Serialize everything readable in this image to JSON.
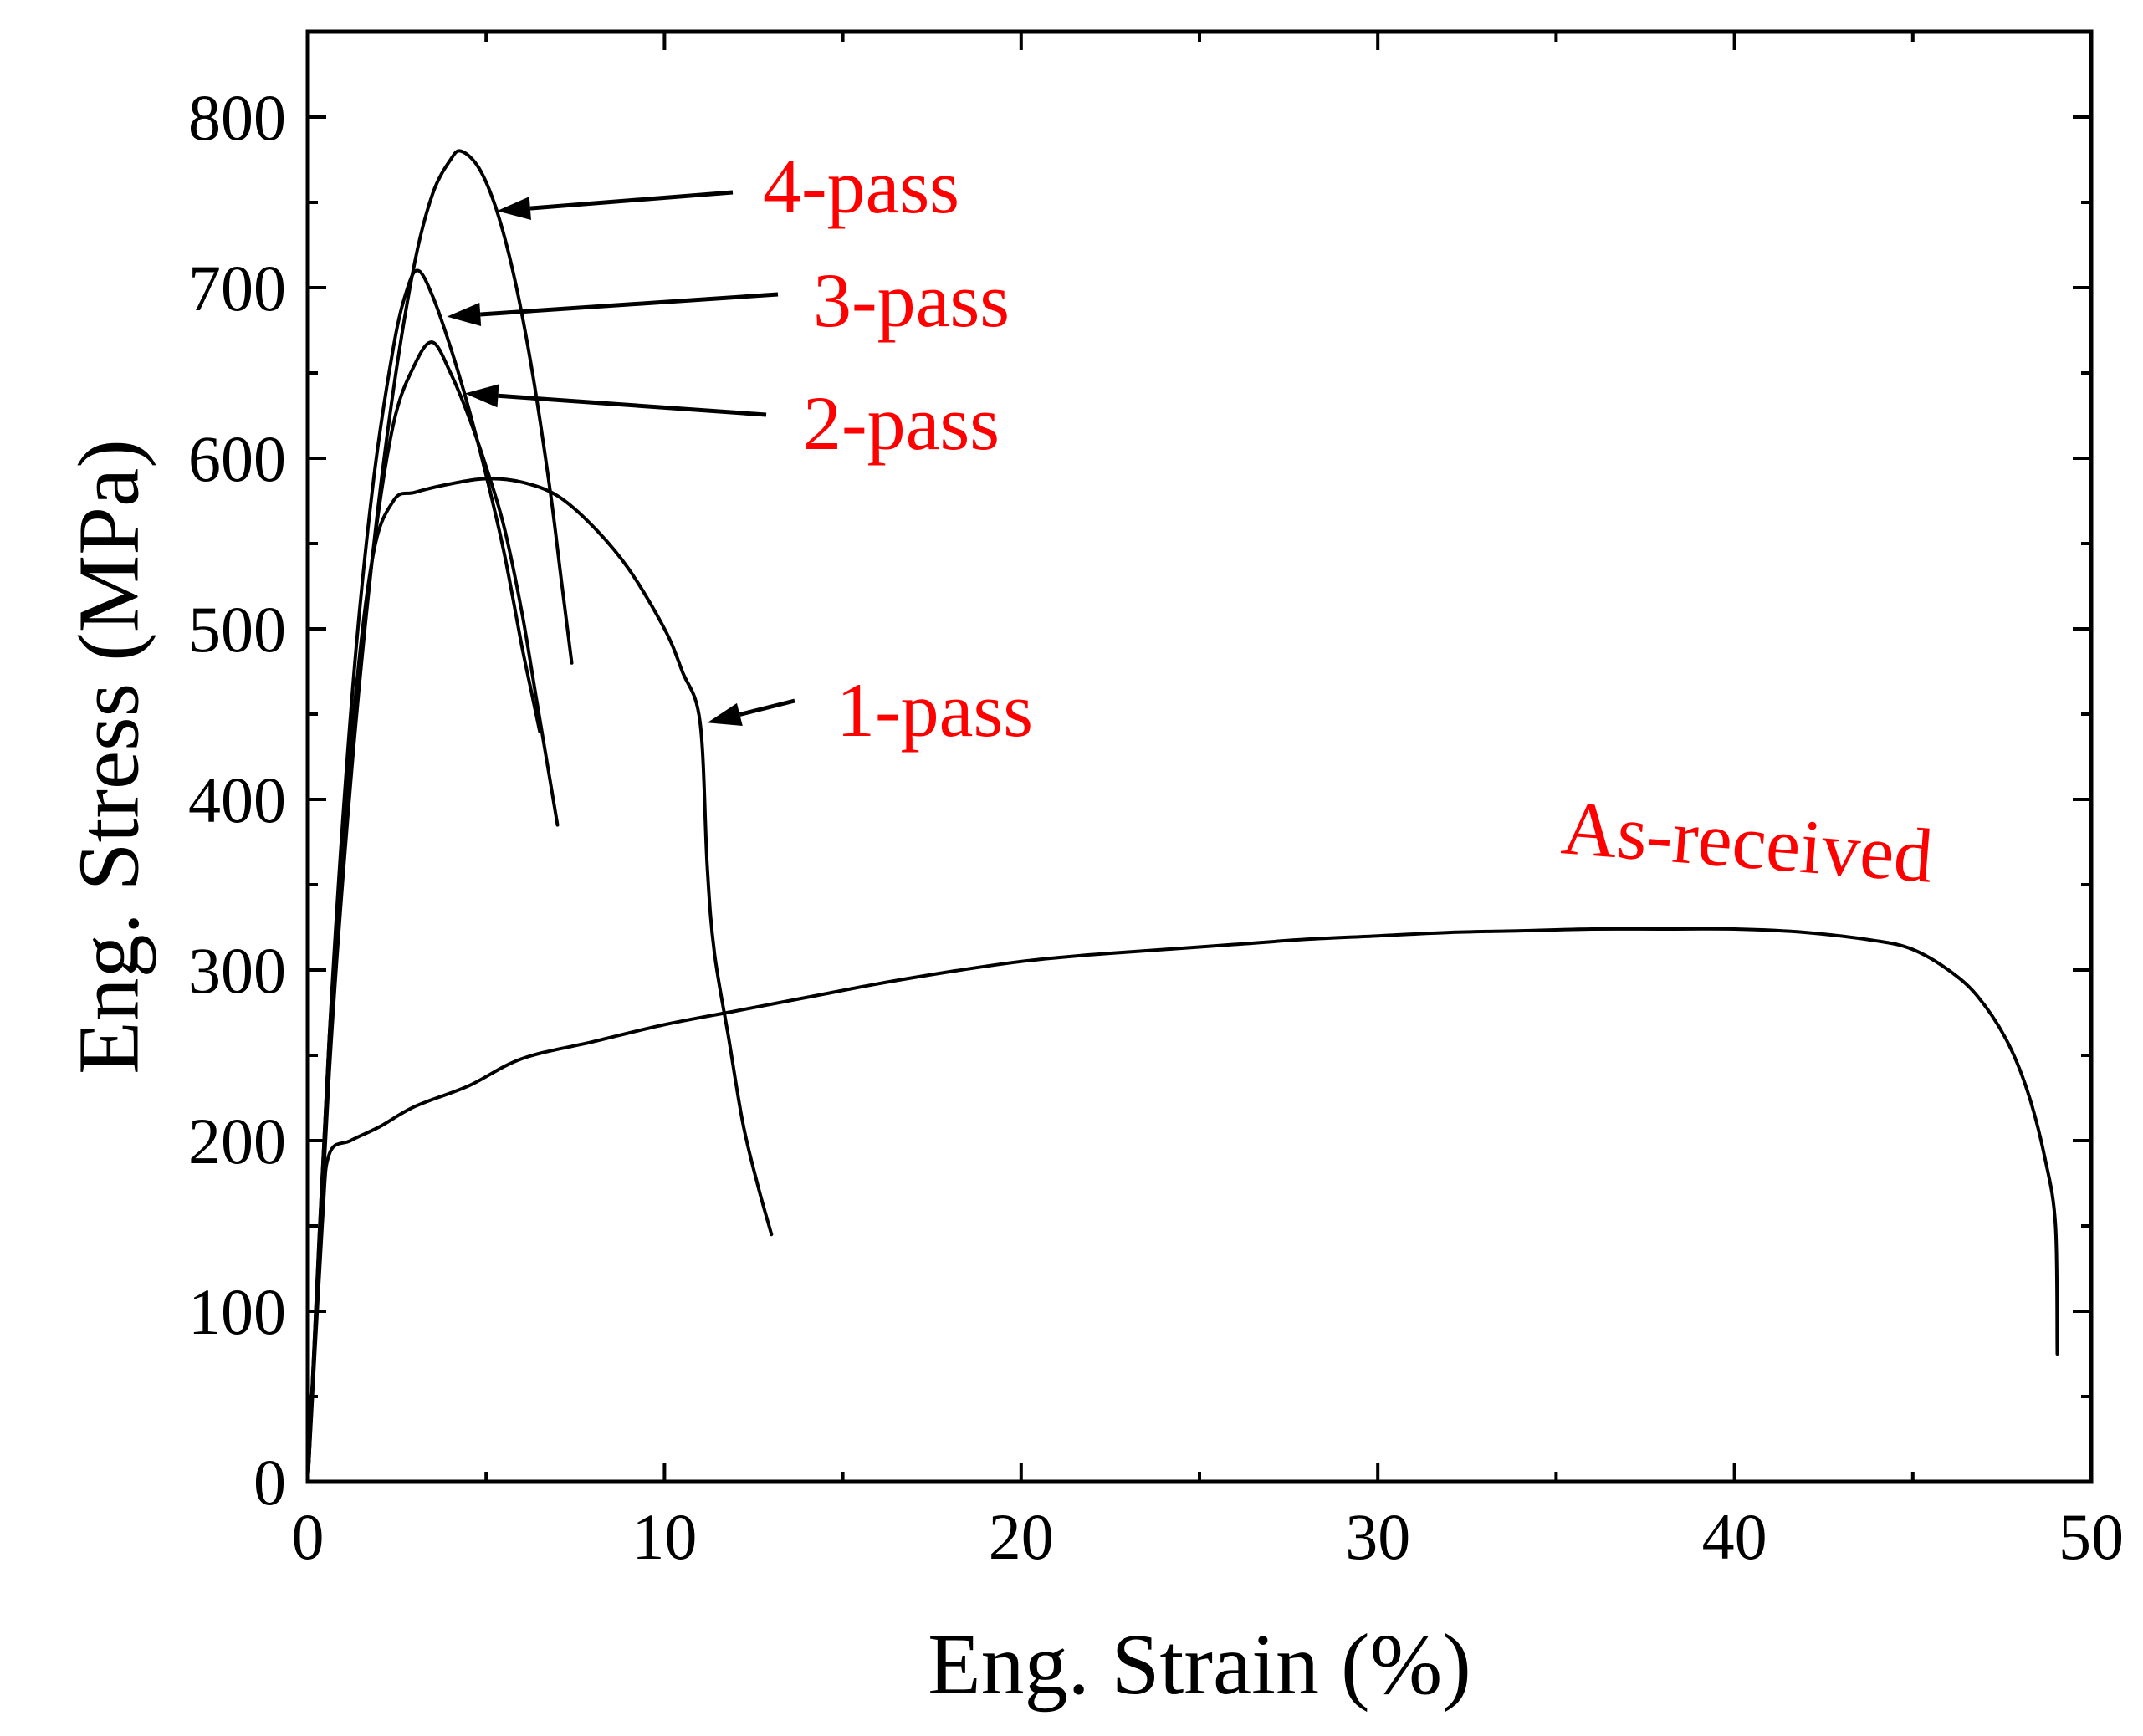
{
  "chart_data": {
    "type": "line",
    "title": "",
    "xlabel": "Eng. Strain (%)",
    "ylabel": "Eng. Stress (MPa)",
    "xlim": [
      0,
      50
    ],
    "ylim": [
      0,
      850
    ],
    "xticks": [
      0,
      10,
      20,
      30,
      40,
      50
    ],
    "yticks": [
      0,
      100,
      200,
      300,
      400,
      500,
      600,
      700,
      800
    ],
    "grid": false,
    "legend": "none",
    "label_color": "#ff0000",
    "line_color": "#000000",
    "series": [
      {
        "name": "As-received",
        "x": [
          0,
          0.4,
          0.6,
          1.2,
          2.0,
          3.0,
          4.5,
          6.0,
          8.0,
          10.0,
          12.0,
          14.0,
          16.0,
          18.0,
          20.0,
          22.0,
          24.0,
          26.0,
          28.0,
          30.0,
          32.0,
          34.0,
          36.0,
          38.0,
          40.0,
          42.0,
          44.0,
          45.0,
          46.0,
          46.8,
          47.6,
          48.2,
          48.7,
          49.0,
          49.05
        ],
        "y": [
          0,
          150,
          192,
          200,
          208,
          220,
          232,
          248,
          258,
          268,
          276,
          284,
          292,
          299,
          305,
          309,
          312,
          315,
          318,
          320,
          322,
          323,
          324,
          324,
          324,
          322,
          317,
          312,
          300,
          285,
          260,
          230,
          190,
          150,
          75
        ]
      },
      {
        "name": "1-pass",
        "x": [
          0,
          0.6,
          1.2,
          1.8,
          2.4,
          3.0,
          4.0,
          5.0,
          6.0,
          7.0,
          8.0,
          9.0,
          10.0,
          10.5,
          11.0,
          11.2,
          11.4,
          11.8,
          12.2,
          12.6,
          13.0
        ],
        "y": [
          0,
          260,
          430,
          540,
          575,
          580,
          585,
          588,
          586,
          578,
          560,
          535,
          500,
          475,
          445,
          360,
          310,
          260,
          210,
          175,
          145
        ]
      },
      {
        "name": "2-pass",
        "x": [
          0,
          0.6,
          1.2,
          1.8,
          2.4,
          3.0,
          3.5,
          4.0,
          4.5,
          5.0,
          5.5,
          6.0,
          6.4,
          6.8,
          7.0
        ],
        "y": [
          0,
          250,
          420,
          540,
          620,
          655,
          668,
          650,
          625,
          595,
          560,
          510,
          460,
          410,
          385
        ]
      },
      {
        "name": "3-pass",
        "x": [
          0,
          0.6,
          1.2,
          1.8,
          2.4,
          2.8,
          3.1,
          3.5,
          4.0,
          4.5,
          5.0,
          5.5,
          6.0,
          6.3,
          6.5
        ],
        "y": [
          0,
          260,
          450,
          580,
          665,
          700,
          710,
          695,
          665,
          630,
          590,
          545,
          490,
          460,
          440
        ]
      },
      {
        "name": "4-pass",
        "x": [
          0,
          0.6,
          1.2,
          1.8,
          2.4,
          3.0,
          3.5,
          4.0,
          4.3,
          4.8,
          5.3,
          5.8,
          6.3,
          6.8,
          7.1,
          7.4
        ],
        "y": [
          0,
          240,
          410,
          540,
          640,
          715,
          755,
          775,
          780,
          770,
          745,
          705,
          650,
          580,
          530,
          480
        ]
      }
    ],
    "annotations": [
      {
        "text": "4-pass",
        "target": [
          5.3,
          745
        ]
      },
      {
        "text": "3-pass",
        "target": [
          3.9,
          683
        ]
      },
      {
        "text": "2-pass",
        "target": [
          4.4,
          638
        ]
      },
      {
        "text": "1-pass",
        "target": [
          11.2,
          445
        ]
      },
      {
        "text": "As-received"
      }
    ]
  }
}
